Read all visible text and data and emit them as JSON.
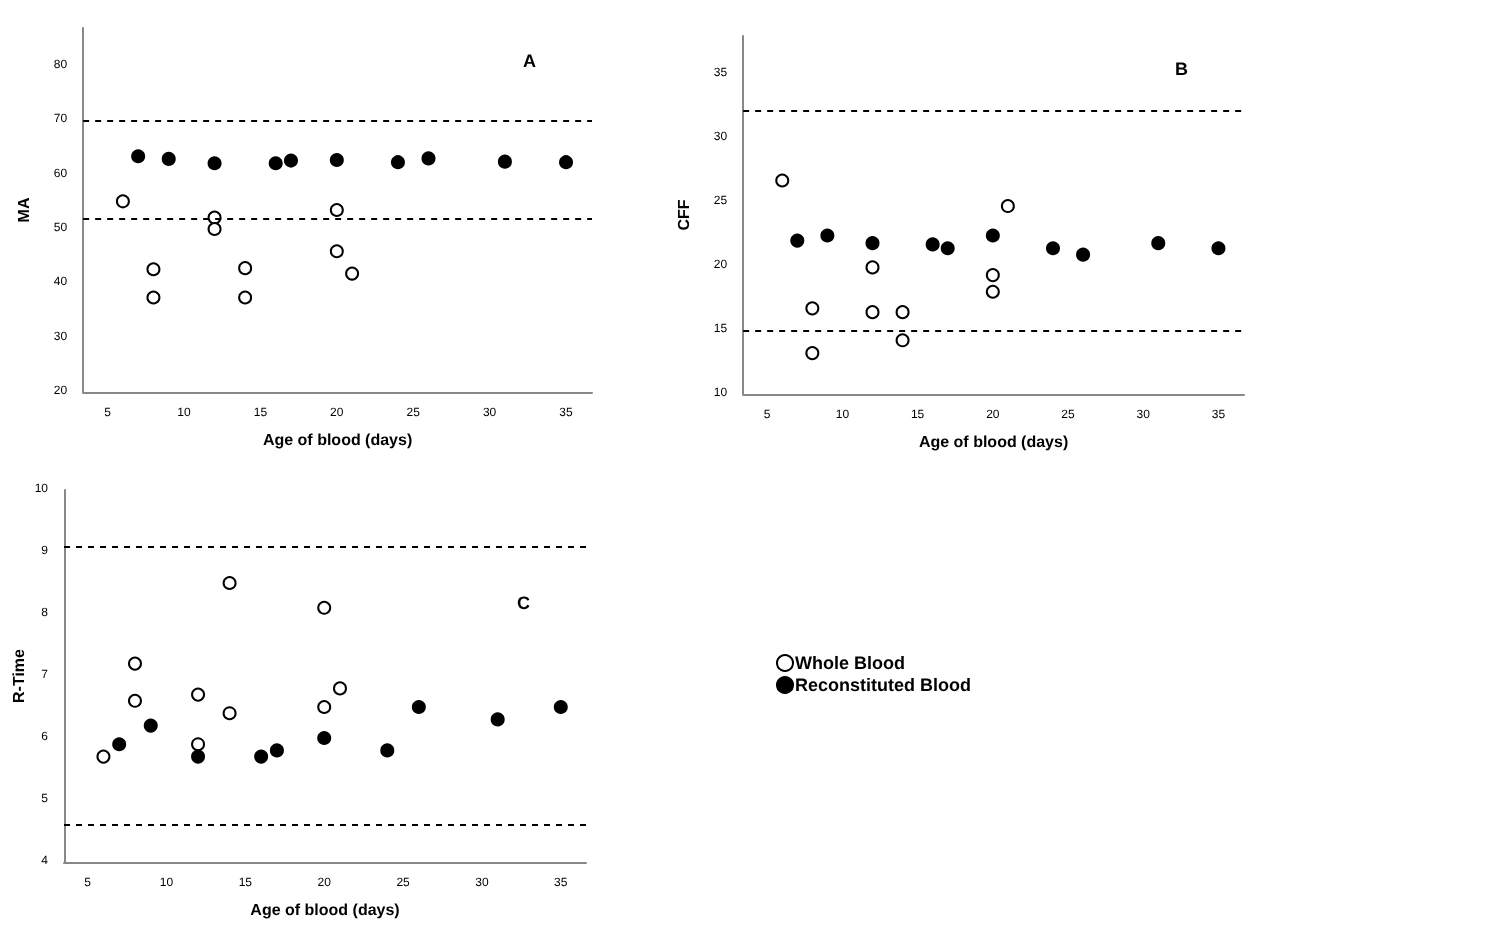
{
  "chart_data": [
    {
      "type": "scatter",
      "xlabel": "Age of blood (days)",
      "ylabel": "MA",
      "annotations": [
        "A"
      ],
      "xlim": [
        3.4,
        36.7
      ],
      "xticks": [
        5,
        10,
        15,
        20,
        25,
        30,
        35
      ],
      "ylim": [
        20,
        87
      ],
      "yticks": [
        20,
        30,
        40,
        50,
        60,
        70,
        80
      ],
      "grid": false,
      "legend": false,
      "marker": "circle",
      "ref_lines": [
        {
          "axis": "y",
          "value": 70,
          "color": "#000000",
          "line_style": "dashed"
        },
        {
          "axis": "y",
          "value": 52,
          "color": "#000000",
          "line_style": "dashed"
        }
      ],
      "series": [
        {
          "color": "#ffffff",
          "x": [
            6,
            8,
            8,
            12,
            12,
            14,
            14,
            20,
            20,
            21
          ],
          "values": [
            55.1,
            42.6,
            37.4,
            52.1,
            50.0,
            42.8,
            37.4,
            53.5,
            45.9,
            41.8
          ]
        },
        {
          "color": "#000000",
          "x": [
            7,
            9,
            12,
            16,
            17,
            20,
            24,
            26,
            31,
            35
          ],
          "values": [
            63.4,
            62.9,
            62.1,
            62.1,
            62.6,
            62.7,
            62.3,
            63.0,
            62.4,
            62.3
          ]
        }
      ]
    },
    {
      "type": "scatter",
      "xlabel": "Age of blood (days)",
      "ylabel": "CFF",
      "annotations": [
        "B"
      ],
      "xlim": [
        3.4,
        36.7
      ],
      "xticks": [
        5,
        10,
        15,
        20,
        25,
        30,
        35
      ],
      "ylim": [
        10,
        38
      ],
      "yticks": [
        10,
        15,
        20,
        25,
        30,
        35
      ],
      "grid": false,
      "legend": false,
      "marker": "circle",
      "ref_lines": [
        {
          "axis": "y",
          "value": 32.2,
          "color": "#000000",
          "line_style": "dashed"
        },
        {
          "axis": "y",
          "value": 15,
          "color": "#000000",
          "line_style": "dashed"
        }
      ],
      "series": [
        {
          "color": "#ffffff",
          "x": [
            6,
            8,
            8,
            12,
            12,
            14,
            14,
            20,
            20,
            21
          ],
          "values": [
            26.7,
            16.7,
            13.2,
            19.9,
            16.4,
            16.4,
            14.2,
            19.3,
            18.0,
            24.7
          ]
        },
        {
          "color": "#000000",
          "x": [
            7,
            9,
            12,
            16,
            17,
            20,
            24,
            26,
            31,
            35
          ],
          "values": [
            22.0,
            22.4,
            21.8,
            21.7,
            21.4,
            22.4,
            21.4,
            20.9,
            21.8,
            21.4
          ]
        }
      ]
    },
    {
      "type": "scatter",
      "xlabel": "Age of blood (days)",
      "ylabel": "R-Time",
      "annotations": [
        "C"
      ],
      "xlim": [
        3.5,
        36.6
      ],
      "xticks": [
        5,
        10,
        15,
        20,
        25,
        30,
        35
      ],
      "ylim": [
        4,
        10
      ],
      "yticks": [
        4,
        5,
        6,
        7,
        8,
        9,
        10
      ],
      "grid": false,
      "legend": "right",
      "marker": "circle",
      "ref_lines": [
        {
          "axis": "y",
          "value": 9.1,
          "color": "#000000",
          "line_style": "dashed"
        },
        {
          "axis": "y",
          "value": 4.6,
          "color": "#000000",
          "line_style": "dashed"
        }
      ],
      "series": [
        {
          "name": "Whole Blood",
          "color": "#ffffff",
          "x": [
            6,
            8,
            8,
            12,
            12,
            14,
            14,
            20,
            20,
            21
          ],
          "values": [
            5.7,
            7.2,
            6.6,
            6.7,
            5.9,
            8.5,
            6.4,
            8.1,
            6.5,
            6.8
          ]
        },
        {
          "name": "Reconstituted Blood",
          "color": "#000000",
          "x": [
            7,
            9,
            12,
            16,
            17,
            20,
            24,
            26,
            31,
            35
          ],
          "values": [
            5.9,
            6.2,
            5.7,
            5.7,
            5.8,
            6.0,
            5.8,
            6.5,
            6.3,
            6.5
          ]
        }
      ]
    }
  ]
}
